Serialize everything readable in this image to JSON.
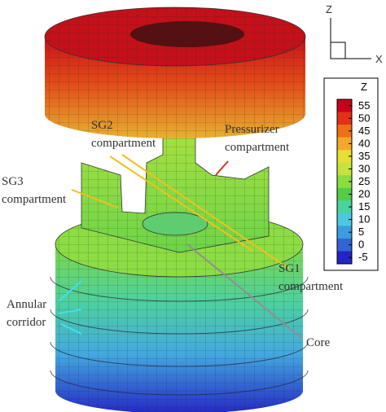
{
  "axes_triad": {
    "vertical": "Z",
    "horizontal": "X"
  },
  "colorbar": {
    "title": "Z",
    "ticks": [
      55,
      50,
      45,
      40,
      35,
      30,
      25,
      20,
      15,
      10,
      5,
      0,
      -5
    ],
    "colors": [
      "#c8001a",
      "#e4301a",
      "#f07018",
      "#f4a82a",
      "#e8de34",
      "#c4e43c",
      "#8cdc40",
      "#54cc44",
      "#48d49c",
      "#4cc8e0",
      "#3c9ce0",
      "#3464d4",
      "#2424c4"
    ]
  },
  "labels": [
    {
      "lines": [
        "SG2",
        "compartment"
      ]
    },
    {
      "lines": [
        "Pressurizer",
        "compartment"
      ]
    },
    {
      "lines": [
        "SG3",
        "compartment"
      ]
    },
    {
      "lines": [
        "SG1",
        "compartment"
      ]
    },
    {
      "lines": [
        "Annular",
        "corridor"
      ]
    },
    {
      "lines": [
        "Core"
      ]
    }
  ]
}
